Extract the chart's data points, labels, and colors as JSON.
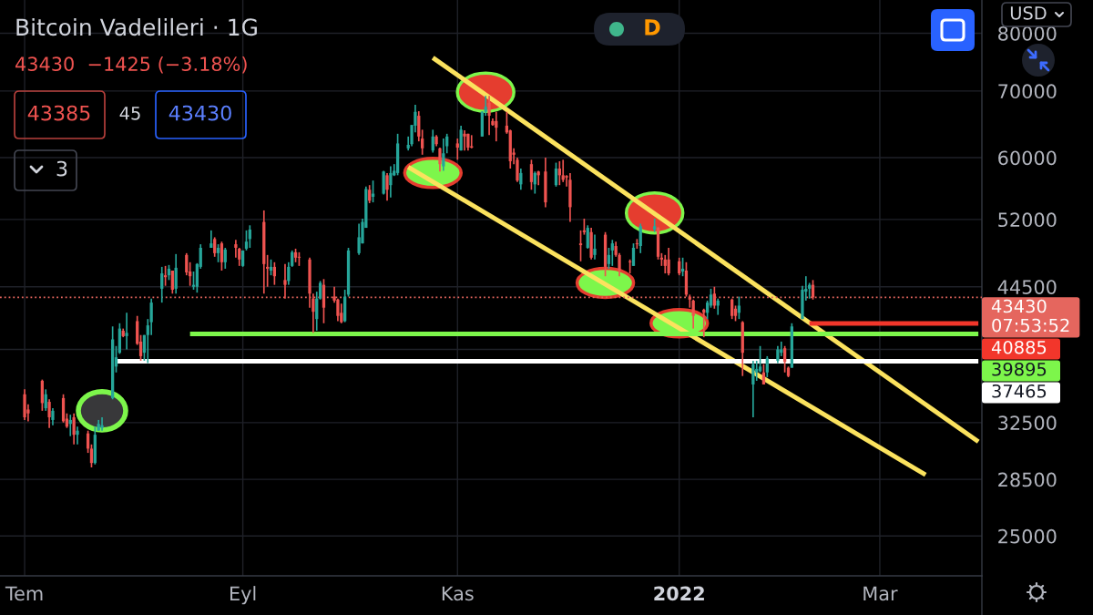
{
  "chart_data": {
    "type": "candlestick",
    "title": "Bitcoin Vadelileri · 1G",
    "subtitle": "43430  −1425 (−3.18%)",
    "x": [
      "2021-07-01",
      "2021-07-02",
      "2021-07-06",
      "2021-07-07",
      "2021-07-08",
      "2021-07-09",
      "2021-07-12",
      "2021-07-13",
      "2021-07-14",
      "2021-07-15",
      "2021-07-16",
      "2021-07-19",
      "2021-07-20",
      "2021-07-21",
      "2021-07-22",
      "2021-07-23",
      "2021-07-26",
      "2021-07-27",
      "2021-07-28",
      "2021-07-29",
      "2021-07-30",
      "2021-08-02",
      "2021-08-03",
      "2021-08-04",
      "2021-08-05",
      "2021-08-06",
      "2021-08-09",
      "2021-08-10",
      "2021-08-11",
      "2021-08-12",
      "2021-08-13",
      "2021-08-16",
      "2021-08-17",
      "2021-08-18",
      "2021-08-19",
      "2021-08-20",
      "2021-08-23",
      "2021-08-24",
      "2021-08-25",
      "2021-08-26",
      "2021-08-27",
      "2021-08-30",
      "2021-08-31",
      "2021-09-01",
      "2021-09-02",
      "2021-09-03",
      "2021-09-07",
      "2021-09-08",
      "2021-09-09",
      "2021-09-10",
      "2021-09-13",
      "2021-09-14",
      "2021-09-15",
      "2021-09-16",
      "2021-09-17",
      "2021-09-20",
      "2021-09-21",
      "2021-09-22",
      "2021-09-23",
      "2021-09-24",
      "2021-09-27",
      "2021-09-28",
      "2021-09-29",
      "2021-09-30",
      "2021-10-01",
      "2021-10-04",
      "2021-10-05",
      "2021-10-06",
      "2021-10-07",
      "2021-10-08",
      "2021-10-11",
      "2021-10-12",
      "2021-10-13",
      "2021-10-14",
      "2021-10-15",
      "2021-10-18",
      "2021-10-19",
      "2021-10-20",
      "2021-10-21",
      "2021-10-22",
      "2021-10-25",
      "2021-10-26",
      "2021-10-27",
      "2021-10-28",
      "2021-10-29",
      "2021-11-01",
      "2021-11-02",
      "2021-11-03",
      "2021-11-04",
      "2021-11-05",
      "2021-11-08",
      "2021-11-09",
      "2021-11-10",
      "2021-11-11",
      "2021-11-12",
      "2021-11-15",
      "2021-11-16",
      "2021-11-17",
      "2021-11-18",
      "2021-11-19",
      "2021-11-22",
      "2021-11-23",
      "2021-11-24",
      "2021-11-26",
      "2021-11-29",
      "2021-11-30",
      "2021-12-01",
      "2021-12-02",
      "2021-12-03",
      "2021-12-06",
      "2021-12-07",
      "2021-12-08",
      "2021-12-09",
      "2021-12-10",
      "2021-12-13",
      "2021-12-14",
      "2021-12-15",
      "2021-12-16",
      "2021-12-17",
      "2021-12-20",
      "2021-12-21",
      "2021-12-22",
      "2021-12-23",
      "2021-12-27",
      "2021-12-28",
      "2021-12-29",
      "2021-12-30",
      "2021-12-31",
      "2022-01-03",
      "2022-01-04",
      "2022-01-05",
      "2022-01-06",
      "2022-01-07",
      "2022-01-10",
      "2022-01-11",
      "2022-01-12",
      "2022-01-13",
      "2022-01-14",
      "2022-01-18",
      "2022-01-19",
      "2022-01-20",
      "2022-01-21",
      "2022-01-24",
      "2022-01-25",
      "2022-01-26",
      "2022-01-27",
      "2022-01-28",
      "2022-01-31",
      "2022-02-01",
      "2022-02-02",
      "2022-02-03",
      "2022-02-04",
      "2022-02-07",
      "2022-02-08",
      "2022-02-09",
      "2022-02-10"
    ],
    "ohlc": [
      [
        34700,
        35100,
        32700,
        32900
      ],
      [
        33500,
        33900,
        32600,
        33200
      ],
      [
        35800,
        35900,
        33400,
        34000
      ],
      [
        33600,
        35100,
        33400,
        34700
      ],
      [
        34100,
        34300,
        32100,
        32900
      ],
      [
        32700,
        33600,
        32300,
        33400
      ],
      [
        34400,
        34700,
        32500,
        32600
      ],
      [
        32800,
        33200,
        32100,
        32200
      ],
      [
        32400,
        33100,
        31500,
        32700
      ],
      [
        32900,
        33200,
        30900,
        31600
      ],
      [
        31600,
        32200,
        30900,
        31900
      ],
      [
        31700,
        31900,
        30300,
        30600
      ],
      [
        30600,
        30900,
        29300,
        29600
      ],
      [
        29600,
        32200,
        29500,
        31600
      ],
      [
        31900,
        32700,
        31900,
        32400
      ],
      [
        32100,
        32900,
        31900,
        32300
      ],
      [
        34400,
        40600,
        34300,
        39400
      ],
      [
        37000,
        38800,
        36500,
        37800
      ],
      [
        38200,
        40900,
        38100,
        40400
      ],
      [
        40200,
        40400,
        39600,
        39700
      ],
      [
        39700,
        41900,
        38500,
        40000
      ],
      [
        41100,
        41600,
        38900,
        39000
      ],
      [
        39200,
        39800,
        37500,
        37900
      ],
      [
        38200,
        39800,
        37500,
        39800
      ],
      [
        39800,
        41300,
        37300,
        40700
      ],
      [
        41000,
        43300,
        39800,
        42900
      ],
      [
        44300,
        46600,
        42900,
        45900
      ],
      [
        45700,
        46700,
        44600,
        45500
      ],
      [
        45700,
        46800,
        45200,
        46400
      ],
      [
        46200,
        46200,
        43800,
        44200
      ],
      [
        44300,
        48000,
        43800,
        46500
      ],
      [
        47900,
        48100,
        45700,
        46000
      ],
      [
        46100,
        47100,
        44600,
        45600
      ],
      [
        44500,
        46100,
        44200,
        44700
      ],
      [
        44500,
        47000,
        43900,
        46900
      ],
      [
        46600,
        49100,
        46400,
        48700
      ],
      [
        48700,
        50700,
        48700,
        49200
      ],
      [
        49700,
        49900,
        47700,
        48100
      ],
      [
        48100,
        49100,
        47100,
        48700
      ],
      [
        49200,
        49400,
        46200,
        47100
      ],
      [
        47100,
        48700,
        46400,
        48500
      ],
      [
        49100,
        49600,
        47600,
        48700
      ],
      [
        48600,
        48700,
        46700,
        47400
      ],
      [
        46700,
        48400,
        46600,
        48400
      ],
      [
        48600,
        50700,
        48400,
        49400
      ],
      [
        49700,
        51300,
        48700,
        50800
      ],
      [
        51700,
        53100,
        43800,
        46900
      ],
      [
        46600,
        47900,
        44500,
        46400
      ],
      [
        46200,
        47400,
        45700,
        46600
      ],
      [
        46600,
        47100,
        44700,
        45600
      ],
      [
        45200,
        46900,
        43300,
        44700
      ],
      [
        45100,
        47100,
        44700,
        46600
      ],
      [
        46700,
        48400,
        46600,
        48200
      ],
      [
        48200,
        48600,
        47100,
        47600
      ],
      [
        47700,
        48200,
        46700,
        47600
      ],
      [
        47400,
        47600,
        42400,
        43800
      ],
      [
        43300,
        43800,
        40000,
        42000
      ],
      [
        41300,
        44000,
        40200,
        43300
      ],
      [
        43300,
        45100,
        43200,
        44900
      ],
      [
        44700,
        45300,
        40900,
        42400
      ],
      [
        43500,
        44500,
        42900,
        43100
      ],
      [
        43200,
        43300,
        41100,
        41600
      ],
      [
        41900,
        42800,
        40900,
        41000
      ],
      [
        41100,
        44200,
        41000,
        43500
      ],
      [
        43700,
        48700,
        43500,
        48400
      ],
      [
        48100,
        51500,
        47900,
        49900
      ],
      [
        49200,
        52100,
        49200,
        51700
      ],
      [
        51000,
        56100,
        51000,
        55800
      ],
      [
        55700,
        56300,
        54000,
        54300
      ],
      [
        54800,
        56900,
        54100,
        55200
      ],
      [
        55200,
        58200,
        55100,
        58100
      ],
      [
        57600,
        57900,
        54300,
        55700
      ],
      [
        56300,
        58800,
        54700,
        57900
      ],
      [
        57600,
        59100,
        57500,
        58200
      ],
      [
        57900,
        63400,
        57600,
        62000
      ],
      [
        61300,
        63000,
        61000,
        61800
      ],
      [
        61900,
        64700,
        61600,
        64700
      ],
      [
        64600,
        67800,
        63600,
        66700
      ],
      [
        66100,
        66800,
        62300,
        63000
      ],
      [
        62700,
        64000,
        60400,
        61300
      ],
      [
        61000,
        64000,
        60700,
        63000
      ],
      [
        63000,
        63200,
        61600,
        61900
      ],
      [
        61300,
        61400,
        58100,
        59100
      ],
      [
        58800,
        62700,
        58200,
        60600
      ],
      [
        61600,
        63400,
        60600,
        63000
      ],
      [
        62000,
        62700,
        59700,
        61400
      ],
      [
        61000,
        64600,
        61000,
        64000
      ],
      [
        63400,
        63900,
        61000,
        63000
      ],
      [
        63400,
        63400,
        61000,
        61400
      ],
      [
        61600,
        63200,
        61300,
        61400
      ],
      [
        63000,
        66800,
        63000,
        66700
      ],
      [
        66700,
        69200,
        66100,
        67500
      ],
      [
        68100,
        69200,
        63200,
        66100
      ],
      [
        65300,
        65700,
        64600,
        64700
      ],
      [
        65300,
        66700,
        62300,
        64300
      ],
      [
        64600,
        66700,
        63400,
        63600
      ],
      [
        63900,
        64000,
        58500,
        59500
      ],
      [
        60700,
        61300,
        59100,
        60400
      ],
      [
        59700,
        60000,
        56700,
        56900
      ],
      [
        56400,
        58500,
        55700,
        57900
      ],
      [
        59100,
        59700,
        55700,
        56700
      ],
      [
        56400,
        58100,
        55200,
        57900
      ],
      [
        58100,
        58200,
        56300,
        57600
      ],
      [
        58100,
        60000,
        53500,
        54100
      ],
      [
        56300,
        59300,
        56100,
        58500
      ],
      [
        58500,
        59500,
        56300,
        57600
      ],
      [
        57600,
        59700,
        56700,
        57000
      ],
      [
        57500,
        57600,
        56100,
        57300
      ],
      [
        57000,
        57900,
        51700,
        53500
      ],
      [
        49200,
        50700,
        47200,
        49000
      ],
      [
        50700,
        52100,
        50200,
        50500
      ],
      [
        48700,
        51300,
        48600,
        51000
      ],
      [
        50500,
        51000,
        47400,
        47600
      ],
      [
        47900,
        50200,
        47400,
        48600
      ],
      [
        50200,
        50500,
        45600,
        46600
      ],
      [
        46900,
        48700,
        46400,
        47900
      ],
      [
        48400,
        49600,
        46700,
        49200
      ],
      [
        48900,
        49400,
        47700,
        47900
      ],
      [
        47900,
        48100,
        45600,
        46200
      ],
      [
        47200,
        47400,
        45900,
        47100
      ],
      [
        46700,
        49200,
        46700,
        48700
      ],
      [
        49200,
        49700,
        48600,
        49100
      ],
      [
        48900,
        51500,
        48100,
        51200
      ],
      [
        50800,
        52100,
        50500,
        51200
      ],
      [
        51000,
        51100,
        47400,
        47700
      ],
      [
        47600,
        48100,
        46700,
        47400
      ],
      [
        47400,
        47900,
        45900,
        46700
      ],
      [
        47400,
        48700,
        45700,
        45900
      ],
      [
        47200,
        47600,
        45700,
        45900
      ],
      [
        46100,
        47600,
        45600,
        46400
      ],
      [
        46200,
        47100,
        43500,
        43700
      ],
      [
        43500,
        43700,
        42400,
        43200
      ],
      [
        43100,
        43200,
        40400,
        41600
      ],
      [
        42200,
        42300,
        39600,
        41900
      ],
      [
        41900,
        43100,
        41300,
        42900
      ],
      [
        42600,
        44300,
        42400,
        43700
      ],
      [
        43800,
        44500,
        42300,
        42600
      ],
      [
        42600,
        43300,
        41700,
        43100
      ],
      [
        43200,
        43300,
        41300,
        41600
      ],
      [
        42300,
        42600,
        41100,
        41600
      ],
      [
        41900,
        43500,
        41300,
        42600
      ],
      [
        41000,
        41100,
        36200,
        38200
      ],
      [
        35500,
        37500,
        32900,
        37200
      ],
      [
        36500,
        37500,
        35800,
        36800
      ],
      [
        36600,
        38800,
        36500,
        37000
      ],
      [
        36500,
        37200,
        35500,
        35500
      ],
      [
        36500,
        37900,
        36100,
        37700
      ],
      [
        37500,
        38800,
        37300,
        38500
      ],
      [
        38200,
        39200,
        37900,
        38500
      ],
      [
        38600,
        38800,
        36500,
        37400
      ],
      [
        36900,
        37000,
        36100,
        36200
      ],
      [
        36900,
        40900,
        36900,
        40600
      ],
      [
        41300,
        44600,
        41300,
        44200
      ],
      [
        44000,
        45600,
        43100,
        44300
      ],
      [
        44300,
        44900,
        43300,
        44700
      ],
      [
        44700,
        45200,
        43200,
        43430
      ]
    ],
    "colors": [
      "#ef5350",
      "#ef5350",
      "#ef5350",
      "#26a69a",
      "#ef5350",
      "#26a69a",
      "#ef5350",
      "#ef5350",
      "#26a69a",
      "#ef5350",
      "#26a69a",
      "#ef5350",
      "#ef5350",
      "#26a69a",
      "#26a69a",
      "#26a69a",
      "#26a69a",
      "#26a69a",
      "#26a69a",
      "#ef5350",
      "#26a69a",
      "#ef5350",
      "#ef5350",
      "#26a69a",
      "#26a69a",
      "#26a69a",
      "#26a69a",
      "#ef5350",
      "#26a69a",
      "#ef5350",
      "#26a69a",
      "#ef5350",
      "#ef5350",
      "#26a69a",
      "#26a69a",
      "#26a69a",
      "#26a69a",
      "#ef5350",
      "#26a69a",
      "#ef5350",
      "#26a69a",
      "#ef5350",
      "#ef5350",
      "#26a69a",
      "#26a69a",
      "#26a69a",
      "#ef5350",
      "#ef5350",
      "#26a69a",
      "#ef5350",
      "#ef5350",
      "#26a69a",
      "#26a69a",
      "#ef5350",
      "#ef5350",
      "#ef5350",
      "#ef5350",
      "#26a69a",
      "#26a69a",
      "#ef5350",
      "#ef5350",
      "#ef5350",
      "#ef5350",
      "#26a69a",
      "#26a69a",
      "#26a69a",
      "#26a69a",
      "#26a69a",
      "#ef5350",
      "#26a69a",
      "#26a69a",
      "#ef5350",
      "#26a69a",
      "#26a69a",
      "#26a69a",
      "#26a69a",
      "#26a69a",
      "#26a69a",
      "#ef5350",
      "#ef5350",
      "#26a69a",
      "#ef5350",
      "#ef5350",
      "#26a69a",
      "#26a69a",
      "#ef5350",
      "#26a69a",
      "#ef5350",
      "#ef5350",
      "#ef5350",
      "#26a69a",
      "#26a69a",
      "#ef5350",
      "#ef5350",
      "#ef5350",
      "#ef5350",
      "#ef5350",
      "#ef5350",
      "#ef5350",
      "#26a69a",
      "#ef5350",
      "#26a69a",
      "#ef5350",
      "#ef5350",
      "#26a69a",
      "#ef5350",
      "#ef5350",
      "#ef5350",
      "#ef5350",
      "#ef5350",
      "#ef5350",
      "#26a69a",
      "#ef5350",
      "#26a69a",
      "#ef5350",
      "#26a69a",
      "#26a69a",
      "#ef5350",
      "#ef5350",
      "#ef5350",
      "#26a69a",
      "#ef5350",
      "#26a69a",
      "#26a69a",
      "#ef5350",
      "#ef5350",
      "#ef5350",
      "#ef5350",
      "#ef5350",
      "#26a69a",
      "#ef5350",
      "#ef5350",
      "#ef5350",
      "#ef5350",
      "#26a69a",
      "#26a69a",
      "#ef5350",
      "#26a69a",
      "#ef5350",
      "#ef5350",
      "#26a69a",
      "#ef5350",
      "#26a69a",
      "#26a69a",
      "#26a69a",
      "#ef5350",
      "#26a69a",
      "#26a69a",
      "#26a69a",
      "#ef5350",
      "#ef5350",
      "#26a69a",
      "#26a69a",
      "#26a69a",
      "#26a69a",
      "#ef5350"
    ],
    "series": [
      {
        "type": "line",
        "x": [
          "2021-10-25",
          "2022-03-29"
        ],
        "values": [
          75600,
          31100
        ],
        "color": "#fbe25e"
      },
      {
        "type": "line",
        "x": [
          "2021-10-18",
          "2022-03-14"
        ],
        "values": [
          58700,
          28800
        ],
        "color": "#fbe25e"
      },
      {
        "type": "line",
        "x": [
          "2021-08-17",
          "2022-03-29"
        ],
        "values": [
          39895,
          39895
        ],
        "color": "#7df64b",
        "value_labels": [
          null,
          "39895"
        ]
      },
      {
        "type": "line",
        "x": [
          "2021-07-27",
          "2022-03-29"
        ],
        "values": [
          37465,
          37465
        ],
        "color": "#ffffff",
        "value_labels": [
          null,
          "37465"
        ]
      },
      {
        "type": "line",
        "x": [
          "2022-02-09",
          "2022-03-29"
        ],
        "values": [
          40885,
          40885
        ],
        "color": "#f2362b",
        "value_labels": [
          null,
          "40885"
        ]
      }
    ],
    "ref_lines": [
      {
        "axis": "y",
        "value": 43430,
        "label": "43430\n07:53:52",
        "color": "#e5665e",
        "line_style": "dotted"
      }
    ],
    "xlim": [
      "2021-06-24",
      "2022-03-30"
    ],
    "xticks": [
      {
        "value": "2021-07-01",
        "label": "Tem"
      },
      {
        "value": "2021-09-01",
        "label": "Eyl"
      },
      {
        "value": "2021-11-01",
        "label": "Kas"
      },
      {
        "value": "2022-01-03",
        "label": "2022"
      },
      {
        "value": "2022-03-01",
        "label": "Mar"
      }
    ],
    "ylim": [
      22800,
      86400
    ],
    "yticks": [
      25000,
      28500,
      32500,
      {
        "value": 38500,
        "label": null
      },
      44500,
      52000,
      60000,
      70000,
      80000
    ],
    "log": true,
    "grid": true,
    "annotations": [
      "43385",
      "45",
      "43430",
      "3",
      "D",
      "USD"
    ]
  }
}
